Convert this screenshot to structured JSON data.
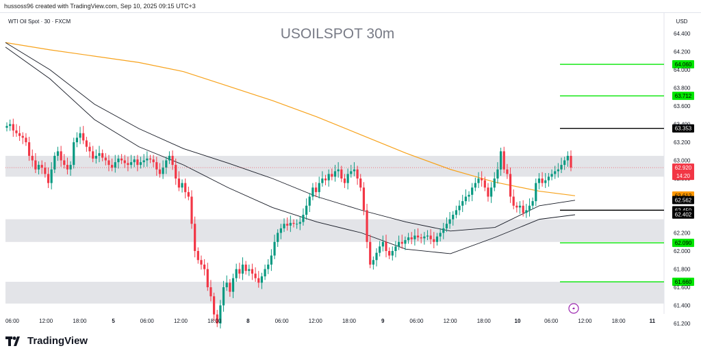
{
  "attribution": "hussoss96 created with TradingView.com, Sep 10, 2025 09:15 UTC+3",
  "brand": "TradingView",
  "chart_data": {
    "type": "candlestick",
    "title": "USOILSPOT 30m",
    "legend": "WTI Oil Spot · 30 · FXCM",
    "currency": "USD",
    "ylim": [
      61.1,
      64.6
    ],
    "y_ticks": [
      "64.400",
      "64.200",
      "64.000",
      "63.800",
      "63.600",
      "63.400",
      "63.200",
      "63.000",
      "62.800",
      "62.600",
      "62.400",
      "62.200",
      "62.000",
      "61.800",
      "61.600",
      "61.400",
      "61.200"
    ],
    "x_ticks": [
      "06:00",
      "12:00",
      "18:00",
      "5",
      "06:00",
      "12:00",
      "18:00",
      "8",
      "06:00",
      "12:00",
      "18:00",
      "9",
      "06:00",
      "12:00",
      "18:00",
      "10",
      "06:00",
      "12:00",
      "18:00",
      "11"
    ],
    "zones": [
      [
        62.82,
        63.05
      ],
      [
        62.1,
        62.35
      ],
      [
        61.42,
        61.66
      ]
    ],
    "levels": [
      {
        "value": 64.06,
        "label": "64.060",
        "color": "#00e600"
      },
      {
        "value": 63.712,
        "label": "63.712",
        "color": "#00e600"
      },
      {
        "value": 63.353,
        "label": "63.353",
        "color": "#000000"
      },
      {
        "value": 62.45,
        "label": "62.450",
        "color": "#000000"
      },
      {
        "value": 62.09,
        "label": "62.090",
        "color": "#00e600"
      },
      {
        "value": 61.66,
        "label": "61.660",
        "color": "#00e600"
      }
    ],
    "price_tags": [
      {
        "value": 62.612,
        "label": "62.612",
        "bg": "#ff9800",
        "fg": "#000000"
      },
      {
        "value": 62.562,
        "label": "62.562",
        "bg": "#000000",
        "fg": "#ffffff"
      },
      {
        "value": 62.402,
        "label": "62.402",
        "bg": "#000000",
        "fg": "#ffffff"
      }
    ],
    "last_price": {
      "value": 62.92,
      "label": "62.920",
      "countdown": "14:20",
      "color": "#f23645"
    },
    "colors": {
      "up": "#089981",
      "down": "#f23645",
      "ema": "#f7a21b",
      "band": "#131722",
      "zone": "#e3e4e8"
    },
    "series": [
      {
        "name": "price",
        "close": [
          63.38,
          63.4,
          63.33,
          63.3,
          63.27,
          63.25,
          63.2,
          63.05,
          63.0,
          62.9,
          62.95,
          62.92,
          62.85,
          62.75,
          62.9,
          63.05,
          63.1,
          63.0,
          62.95,
          62.9,
          62.95,
          63.2,
          63.25,
          63.3,
          63.22,
          63.15,
          63.1,
          63.02,
          63.05,
          63.08,
          63.03,
          63.0,
          62.95,
          62.92,
          62.98,
          63.02,
          63.0,
          62.97,
          62.95,
          62.98,
          63.01,
          62.95,
          62.98,
          63.0,
          63.02,
          63.01,
          62.98,
          62.9,
          62.85,
          62.92,
          63.0,
          63.05,
          62.95,
          62.8,
          62.7,
          62.75,
          62.65,
          62.6,
          62.3,
          62.0,
          61.9,
          61.85,
          61.8,
          61.6,
          61.5,
          61.3,
          61.2,
          61.4,
          61.6,
          61.65,
          61.55,
          61.7,
          61.8,
          61.75,
          61.85,
          61.78,
          61.8,
          61.75,
          61.7,
          61.65,
          61.72,
          61.8,
          61.85,
          61.95,
          62.1,
          62.2,
          62.25,
          62.3,
          62.28,
          62.31,
          62.3,
          62.3,
          62.32,
          62.4,
          62.5,
          62.6,
          62.7,
          62.65,
          62.75,
          62.8,
          62.78,
          62.85,
          62.82,
          62.88,
          62.9,
          62.8,
          62.75,
          62.85,
          62.88,
          62.9,
          62.8,
          62.7,
          62.45,
          62.1,
          61.85,
          61.9,
          61.98,
          62.05,
          62.1,
          62.0,
          61.95,
          62.0,
          62.05,
          62.1,
          62.08,
          62.12,
          62.15,
          62.13,
          62.17,
          62.15,
          62.14,
          62.16,
          62.17,
          62.13,
          62.1,
          62.16,
          62.2,
          62.25,
          62.3,
          62.35,
          62.4,
          62.45,
          62.5,
          62.55,
          62.6,
          62.62,
          62.7,
          62.75,
          62.8,
          62.78,
          62.7,
          62.6,
          62.7,
          62.8,
          62.9,
          63.1,
          62.9,
          62.85,
          62.6,
          62.5,
          62.48,
          62.5,
          62.42,
          62.45,
          62.5,
          62.55,
          62.75,
          62.8,
          62.75,
          62.78,
          62.82,
          62.85,
          62.88,
          62.9,
          62.95,
          63.0,
          63.05,
          62.92
        ]
      },
      {
        "name": "EMA",
        "values": [
          [
            0,
            64.3
          ],
          [
            50,
            64.22
          ],
          [
            100,
            64.15
          ],
          [
            150,
            64.08
          ],
          [
            200,
            63.98
          ],
          [
            250,
            63.82
          ],
          [
            300,
            63.66
          ],
          [
            350,
            63.48
          ],
          [
            400,
            63.28
          ],
          [
            450,
            63.08
          ],
          [
            500,
            62.9
          ],
          [
            550,
            62.76
          ],
          [
            600,
            62.66
          ],
          [
            640,
            62.61
          ]
        ]
      },
      {
        "name": "band-upper",
        "values": [
          [
            0,
            64.3
          ],
          [
            50,
            64.0
          ],
          [
            100,
            63.62
          ],
          [
            150,
            63.35
          ],
          [
            200,
            63.13
          ],
          [
            250,
            62.97
          ],
          [
            300,
            62.8
          ],
          [
            350,
            62.6
          ],
          [
            400,
            62.45
          ],
          [
            450,
            62.32
          ],
          [
            500,
            62.22
          ],
          [
            550,
            62.26
          ],
          [
            600,
            62.5
          ],
          [
            640,
            62.56
          ]
        ]
      },
      {
        "name": "band-lower",
        "values": [
          [
            0,
            64.25
          ],
          [
            50,
            63.9
          ],
          [
            100,
            63.45
          ],
          [
            150,
            63.15
          ],
          [
            200,
            62.95
          ],
          [
            250,
            62.7
          ],
          [
            300,
            62.48
          ],
          [
            350,
            62.32
          ],
          [
            400,
            62.2
          ],
          [
            450,
            62.02
          ],
          [
            500,
            61.97
          ],
          [
            550,
            62.15
          ],
          [
            600,
            62.35
          ],
          [
            640,
            62.4
          ]
        ]
      }
    ]
  }
}
